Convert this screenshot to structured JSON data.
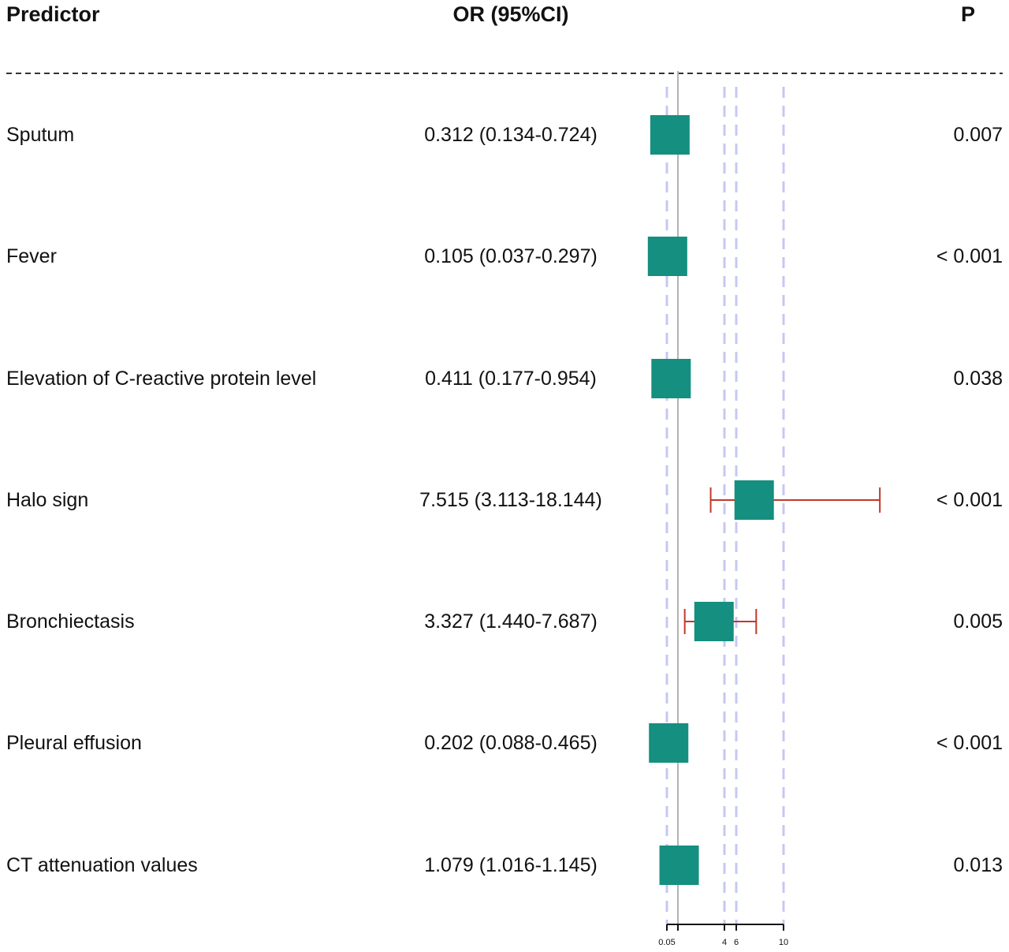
{
  "header": {
    "predictor": "Predictor",
    "or_ci": "OR (95%CI)",
    "p": "P"
  },
  "rows": [
    {
      "label": "Sputum",
      "or_text": "0.312 (0.134-0.724)",
      "p": "0.007"
    },
    {
      "label": "Fever",
      "or_text": "0.105 (0.037-0.297)",
      "p": "< 0.001"
    },
    {
      "label": "Elevation of C-reactive protein level",
      "or_text": "0.411 (0.177-0.954)",
      "p": "0.038"
    },
    {
      "label": "Halo sign",
      "or_text": "7.515 (3.113-18.144)",
      "p": "< 0.001"
    },
    {
      "label": "Bronchiectasis",
      "or_text": "3.327 (1.440-7.687)",
      "p": "0.005"
    },
    {
      "label": "Pleural effusion",
      "or_text": "0.202 (0.088-0.465)",
      "p": "< 0.001"
    },
    {
      "label": "CT attenuation values",
      "or_text": "1.079 (1.016-1.145)",
      "p": "0.013"
    }
  ],
  "chart_data": {
    "type": "forest",
    "x_ticks": [
      "0.05",
      "4",
      "6",
      "10"
    ],
    "x_tick_values": [
      0.05,
      4,
      6,
      10
    ],
    "xlim": [
      0.05,
      10
    ],
    "reference_line": 1,
    "dashed_vlines": [
      0.05,
      4,
      6,
      10
    ],
    "series": [
      {
        "label": "Sputum",
        "or": 0.312,
        "lower": 0.134,
        "upper": 0.724
      },
      {
        "label": "Fever",
        "or": 0.105,
        "lower": 0.037,
        "upper": 0.297
      },
      {
        "label": "Elevation of C-reactive protein level",
        "or": 0.411,
        "lower": 0.177,
        "upper": 0.954
      },
      {
        "label": "Halo sign",
        "or": 7.515,
        "lower": 3.113,
        "upper": 18.144
      },
      {
        "label": "Bronchiectasis",
        "or": 3.327,
        "lower": 1.44,
        "upper": 7.687
      },
      {
        "label": "Pleural effusion",
        "or": 0.202,
        "lower": 0.088,
        "upper": 0.465
      },
      {
        "label": "CT attenuation values",
        "or": 1.079,
        "lower": 1.016,
        "upper": 1.145
      }
    ],
    "colors": {
      "box": "#148f80",
      "ci": "#c0392b",
      "dashed": "#c5c8f3",
      "reference": "#b3b3b3"
    }
  }
}
